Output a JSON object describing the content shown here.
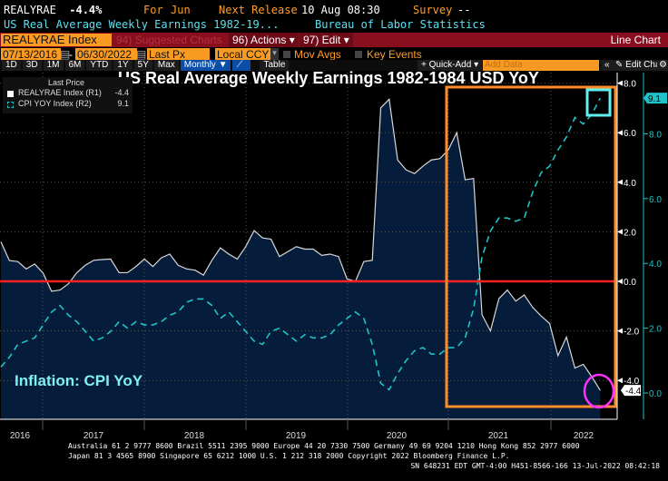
{
  "header": {
    "ticker": "REALYRAE",
    "value": "-4.4%",
    "for_label": "For",
    "period": "Jun",
    "next_release_label": "Next Release",
    "next_release": "10 Aug 08:30",
    "survey_label": "Survey",
    "survey_value": "--",
    "description": "US Real Average Weekly Earnings 1982-19...",
    "source": "Bureau of Labor Statistics"
  },
  "toolbar": {
    "security": "REALYRAE Index",
    "suggested": "94) Suggested Charts",
    "actions": "96) Actions",
    "edit": "97) Edit",
    "chart_type": "Line Chart"
  },
  "controls": {
    "start_date": "07/13/2016",
    "dash": "-",
    "end_date": "06/30/2022",
    "price_field": "Last Px",
    "currency": "Local CCY",
    "mov_avgs": "Mov Avgs",
    "key_events": "Key Events"
  },
  "ranges": [
    "1D",
    "3D",
    "1M",
    "6M",
    "YTD",
    "1Y",
    "5Y",
    "Max"
  ],
  "periodicity": "Monthly ▼",
  "table_label": "Table",
  "quick_add": "+ Quick-Add ▾",
  "add_data_placeholder": "Add Data",
  "edit_chart": "Edit Chart",
  "legend": {
    "heading": "Last Price",
    "items": [
      {
        "label": "REALYRAE Index  (R1)",
        "value": "-4.4"
      },
      {
        "label": "CPI YOY Index  (R2)",
        "value": "9.1"
      }
    ]
  },
  "footer": {
    "line1": "Australia 61 2 9777 8600 Brazil 5511 2395 9000 Europe 44 20 7330 7500 Germany 49 69 9204 1210 Hong Kong 852 2977 6000",
    "line2": "Japan 81 3 4565 8900       Singapore 65 6212 1000       U.S. 1 212 318 2000         Copyright 2022 Bloomberg Finance L.P.",
    "line3": "SN 648231 EDT  GMT-4:00 H451-8566-166 13-Jul-2022 08:42:18"
  },
  "colors": {
    "real_line": "#d8d8d8",
    "area_fill": "#051d3a",
    "cpi_line": "#1fc3c8",
    "zero_line": "#ff2020",
    "highlight_box": "#ff8c2a",
    "cpi_marker": "#5ff0f0",
    "real_marker": "#ff30ff"
  },
  "chart_data": {
    "type": "line",
    "title": "US Real Average Weekly Earnings 1982-1984 USD YoY",
    "annotation": "Inflation: CPI YoY",
    "x_start": "2016-07",
    "x_end": "2022-06",
    "frequency": "monthly",
    "x_ticks": [
      "2016",
      "2017",
      "2018",
      "2019",
      "2020",
      "2021",
      "2022"
    ],
    "series": [
      {
        "name": "REALYRAE Index (R1)",
        "axis": "R1",
        "style": "area",
        "last": "-4.4",
        "values": [
          1.6,
          0.84,
          0.8,
          0.5,
          0.7,
          0.33,
          -0.4,
          -0.35,
          -0.1,
          0.35,
          0.65,
          0.85,
          0.88,
          0.9,
          0.35,
          0.35,
          0.6,
          0.9,
          0.6,
          0.95,
          1.1,
          0.65,
          0.5,
          0.45,
          0.25,
          0.85,
          1.35,
          1.1,
          0.9,
          1.4,
          2.05,
          1.75,
          1.7,
          1.0,
          1.2,
          1.4,
          1.3,
          1.3,
          1.05,
          1.1,
          1.0,
          0.1,
          0.0,
          0.8,
          0.85,
          7.0,
          7.35,
          4.9,
          4.5,
          4.35,
          4.65,
          4.9,
          4.95,
          5.3,
          6.0,
          4.1,
          4.15,
          -1.35,
          -2.0,
          -0.7,
          -0.35,
          -0.8,
          -0.55,
          -1.05,
          -1.4,
          -1.7,
          -3.0,
          -2.25,
          -3.5,
          -3.35,
          -3.85,
          -4.4
        ]
      },
      {
        "name": "CPI YOY Index (R2)",
        "axis": "R2",
        "style": "dashed",
        "last": "9.1",
        "values": [
          0.8,
          1.1,
          1.5,
          1.6,
          1.7,
          2.1,
          2.5,
          2.7,
          2.4,
          2.2,
          1.9,
          1.6,
          1.7,
          1.9,
          2.2,
          2.0,
          2.2,
          2.1,
          2.1,
          2.2,
          2.4,
          2.5,
          2.8,
          2.9,
          2.9,
          2.7,
          2.3,
          2.5,
          2.2,
          1.9,
          1.6,
          1.5,
          1.9,
          2.0,
          1.8,
          1.6,
          1.8,
          1.7,
          1.7,
          1.8,
          2.1,
          2.3,
          2.5,
          2.3,
          1.5,
          0.3,
          0.1,
          0.6,
          1.0,
          1.3,
          1.4,
          1.2,
          1.2,
          1.4,
          1.4,
          1.7,
          2.6,
          4.2,
          5.0,
          5.4,
          5.4,
          5.3,
          5.4,
          6.2,
          6.8,
          7.0,
          7.5,
          7.9,
          8.5,
          8.3,
          8.6,
          9.1
        ]
      }
    ],
    "r1_axis": {
      "ticks": [
        "8.0",
        "6.0",
        "4.0",
        "2.0",
        "0.0",
        "-2.0",
        "-4.0"
      ],
      "range": [
        -4.8,
        8.2
      ]
    },
    "r2_axis": {
      "ticks": [
        "8.0",
        "6.0",
        "4.0",
        "2.0",
        "0.0"
      ],
      "range": [
        -0.8,
        9.6
      ]
    },
    "reference_line": 0,
    "grid": true,
    "legend_placement": "top-left"
  }
}
